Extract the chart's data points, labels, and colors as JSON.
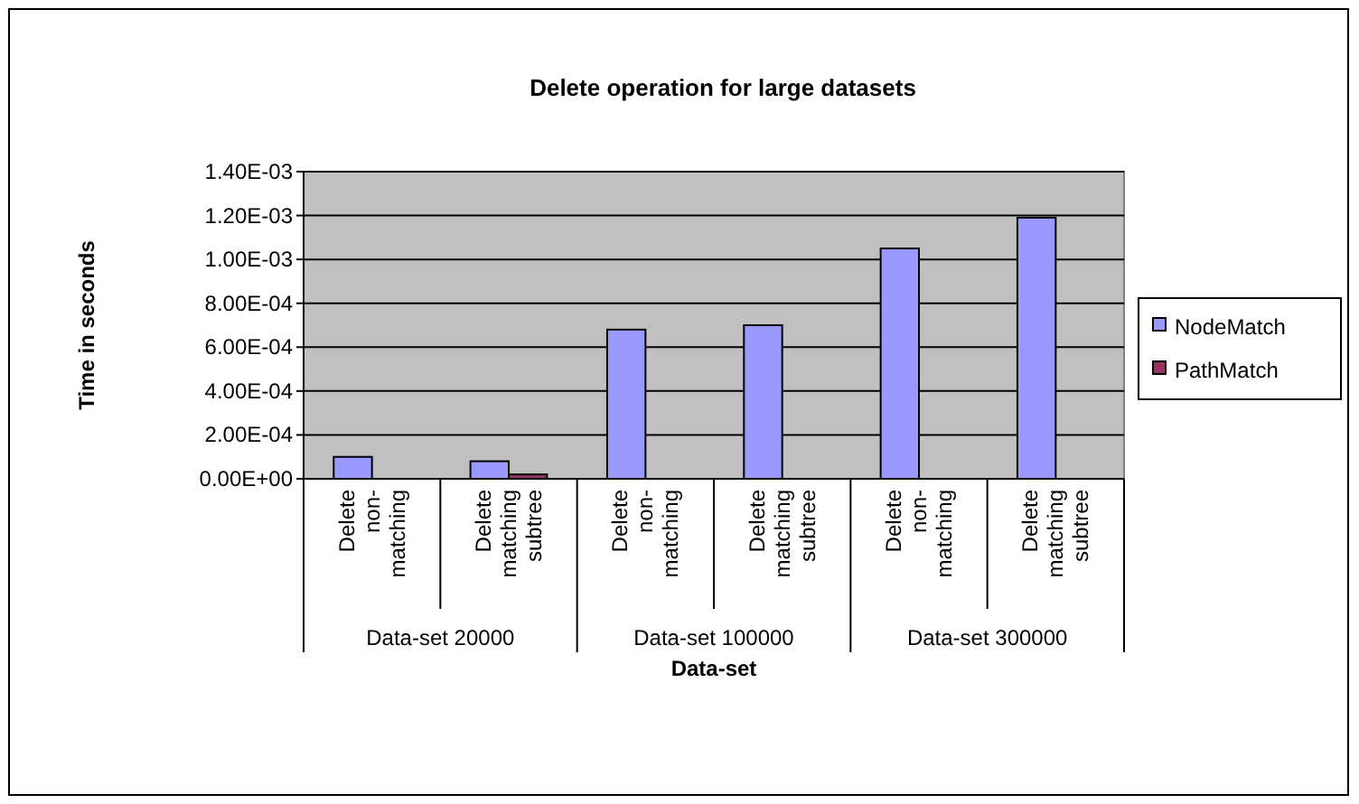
{
  "chart_data": {
    "type": "bar",
    "title": "Delete operation for large datasets",
    "xlabel": "Data-set",
    "ylabel": "Time in seconds",
    "categories": [
      "Delete non-matching",
      "Delete matching subtree",
      "Delete non-matching",
      "Delete matching subtree",
      "Delete non-matching",
      "Delete matching subtree"
    ],
    "series": [
      {
        "name": "NodeMatch",
        "color": "#9999ff",
        "values": [
          0.0001,
          8e-05,
          0.00068,
          0.0007,
          0.00105,
          0.00119
        ]
      },
      {
        "name": "PathMatch",
        "color": "#993366",
        "values": [
          0,
          2e-05,
          0,
          0,
          0,
          0
        ]
      }
    ],
    "ylim": [
      0,
      0.0014
    ],
    "yticks": [
      {
        "value": 0,
        "label": "0.00E+00"
      },
      {
        "value": 0.0002,
        "label": "2.00E-04"
      },
      {
        "value": 0.0004,
        "label": "4.00E-04"
      },
      {
        "value": 0.0006,
        "label": "6.00E-04"
      },
      {
        "value": 0.0008,
        "label": "8.00E-04"
      },
      {
        "value": 0.001,
        "label": "1.00E-03"
      },
      {
        "value": 0.0012,
        "label": "1.20E-03"
      },
      {
        "value": 0.0014,
        "label": "1.40E-03"
      }
    ],
    "grid": "y",
    "legend": "right",
    "annotations": [
      "Data-set 20000",
      "Data-set 100000",
      "Data-set 300000"
    ]
  }
}
